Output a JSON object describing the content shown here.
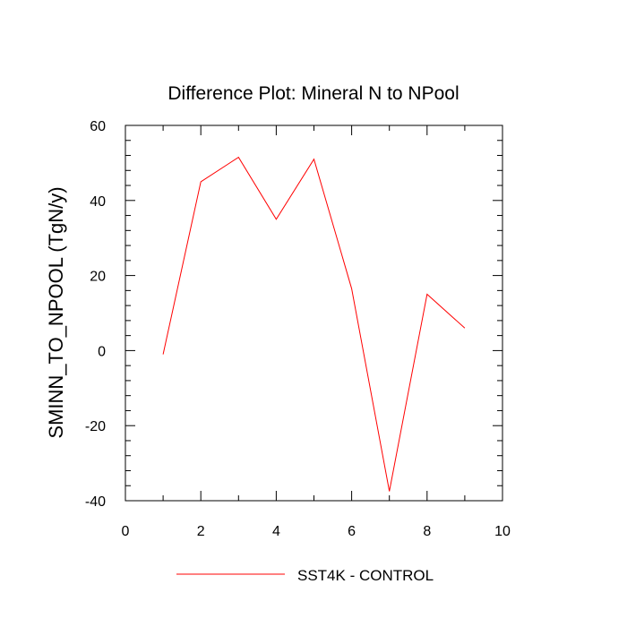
{
  "chart_data": {
    "type": "line",
    "title": "Difference Plot: Mineral N to NPool",
    "xlabel": "",
    "ylabel": "SMINN_TO_NPOOL  (TgN/y)",
    "xlim": [
      0,
      10
    ],
    "ylim": [
      -40,
      60
    ],
    "x_ticks": [
      0,
      2,
      4,
      6,
      8,
      10
    ],
    "y_ticks": [
      60,
      40,
      20,
      0,
      -20,
      -40
    ],
    "x_ticks_minor": [
      1,
      3,
      5,
      7,
      9
    ],
    "y_ticks_minor": [
      56,
      52,
      48,
      44,
      36,
      32,
      28,
      24,
      16,
      12,
      8,
      4,
      -4,
      -8,
      -12,
      -16,
      -24,
      -28,
      -32,
      -36
    ],
    "grid": false,
    "legend_position": "bottom-center",
    "series": [
      {
        "name": "SST4K - CONTROL",
        "color": "#ff0000",
        "x": [
          1,
          2,
          3,
          4,
          5,
          6,
          7,
          8,
          9
        ],
        "y": [
          -1,
          45,
          51.5,
          35,
          51,
          16.5,
          -37.5,
          15,
          6
        ]
      }
    ]
  }
}
